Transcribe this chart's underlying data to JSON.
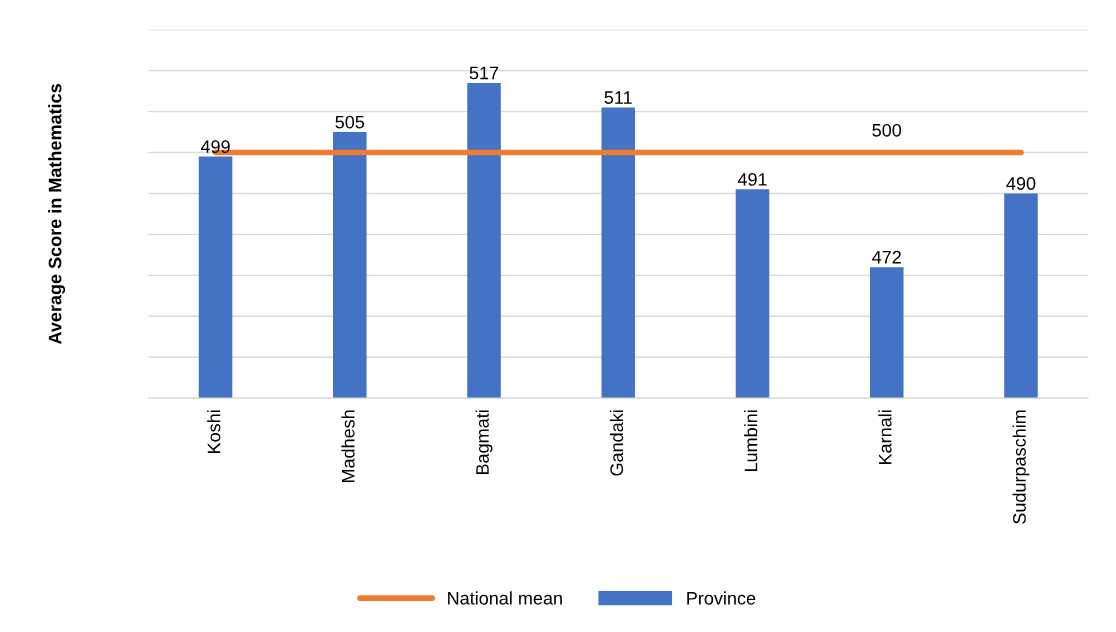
{
  "chart_data": {
    "type": "bar",
    "ylabel": "Average Score in Mathematics",
    "categories": [
      "Koshi",
      "Madhesh",
      "Bagmati",
      "Gandaki",
      "Lumbini",
      "Karnali",
      "Sudurpaschim"
    ],
    "series": [
      {
        "name": "National mean",
        "type": "line",
        "color": "#ed7d31",
        "values": [
          500,
          500,
          500,
          500,
          500,
          500,
          500
        ],
        "value_labels": [
          null,
          null,
          null,
          null,
          null,
          "500",
          null
        ]
      },
      {
        "name": "Province",
        "color": "#4472c4",
        "values": [
          499,
          505,
          517,
          511,
          491,
          472,
          490
        ],
        "value_labels": [
          "499",
          "505",
          "517",
          "511",
          "491",
          "472",
          "490"
        ]
      }
    ],
    "ylim": [
      440,
      530
    ],
    "yticks": [
      440,
      450,
      460,
      470,
      480,
      490,
      500,
      510,
      520,
      530
    ],
    "tick_labels": "x",
    "grid": "y",
    "legend": "bottom"
  }
}
